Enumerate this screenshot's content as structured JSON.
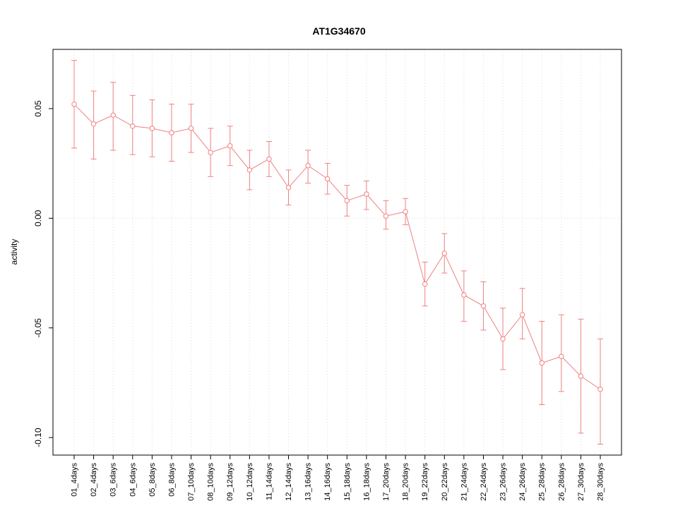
{
  "chart_data": {
    "type": "line",
    "title": "AT1G34670",
    "ylabel": "activity",
    "xlabel": "",
    "legend_position": "none",
    "grid": "dotted vertical lines at each category; dotted horizontal line at 0",
    "categories": [
      "01_4days",
      "02_4days",
      "03_6days",
      "04_6days",
      "05_8days",
      "06_8days",
      "07_10days",
      "08_10days",
      "09_12days",
      "10_12days",
      "11_14days",
      "12_14days",
      "13_16days",
      "14_16days",
      "15_18days",
      "16_18days",
      "17_20days",
      "18_20days",
      "19_22days",
      "20_22days",
      "21_24days",
      "22_24days",
      "23_26days",
      "24_26days",
      "25_28days",
      "26_28days",
      "27_30days",
      "28_30days"
    ],
    "series": [
      {
        "name": "activity",
        "values": [
          0.052,
          0.043,
          0.047,
          0.042,
          0.041,
          0.039,
          0.041,
          0.03,
          0.033,
          0.022,
          0.027,
          0.014,
          0.024,
          0.018,
          0.008,
          0.011,
          0.001,
          0.003,
          -0.03,
          -0.016,
          -0.035,
          -0.04,
          -0.055,
          -0.044,
          -0.066,
          -0.063,
          -0.072,
          -0.078
        ],
        "err_low": [
          0.032,
          0.027,
          0.031,
          0.029,
          0.028,
          0.026,
          0.03,
          0.019,
          0.024,
          0.013,
          0.019,
          0.006,
          0.016,
          0.011,
          0.001,
          0.004,
          -0.005,
          -0.003,
          -0.04,
          -0.025,
          -0.047,
          -0.051,
          -0.069,
          -0.055,
          -0.085,
          -0.079,
          -0.098,
          -0.103
        ],
        "err_high": [
          0.072,
          0.058,
          0.062,
          0.056,
          0.054,
          0.052,
          0.052,
          0.041,
          0.042,
          0.031,
          0.035,
          0.022,
          0.031,
          0.025,
          0.015,
          0.017,
          0.008,
          0.009,
          -0.02,
          -0.007,
          -0.024,
          -0.029,
          -0.041,
          -0.032,
          -0.047,
          -0.044,
          -0.046,
          -0.055
        ]
      }
    ],
    "yticks": [
      0.05,
      0.0,
      -0.05,
      -0.1
    ],
    "ytick_labels": [
      "0.05",
      "0.00",
      "-0.05",
      "-0.10"
    ],
    "ylim": [
      -0.108,
      0.077
    ],
    "hline": 0,
    "colors": {
      "series": "#f08080",
      "grid": "#dcdcdc",
      "axis": "#000000",
      "background": "#ffffff"
    }
  }
}
